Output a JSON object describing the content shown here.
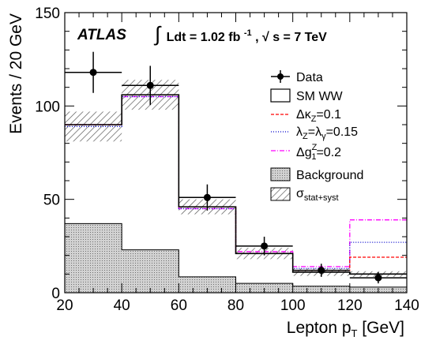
{
  "chart_data": {
    "type": "histogram",
    "x_edges": [
      20,
      40,
      60,
      80,
      100,
      120,
      140
    ],
    "xlim": [
      20,
      140
    ],
    "ylim": [
      0,
      150
    ],
    "x_ticks": [
      20,
      40,
      60,
      80,
      100,
      120,
      140
    ],
    "y_ticks": [
      0,
      50,
      100,
      150
    ],
    "xlabel": {
      "main": "Lepton p",
      "sub": "T",
      "unit": " [GeV]"
    },
    "ylabel": "Events / 20 GeV",
    "atlas_label": "ATLAS",
    "luminosity": {
      "integral": "∫",
      "text": "Ldt = 1.02 fb",
      "sup": "-1",
      "sep": ",",
      "sqrt": "√",
      "energy": "s = 7 TeV"
    },
    "data": {
      "name": "Data",
      "x": [
        30,
        50,
        70,
        90,
        110,
        130
      ],
      "y": [
        118,
        111,
        51,
        25,
        12,
        8
      ],
      "yerr": [
        11,
        10.5,
        7,
        5,
        3.5,
        3
      ]
    },
    "sm_ww": {
      "name": "SM WW",
      "values": [
        90,
        106,
        46,
        21,
        11,
        10
      ]
    },
    "sm_uncertainty": {
      "low": [
        81,
        98,
        42,
        18,
        9,
        8.5
      ],
      "high": [
        97,
        114,
        50,
        24,
        13,
        11.5
      ]
    },
    "background": {
      "name": "Background",
      "values": [
        37,
        23,
        8.5,
        5,
        3.5,
        3
      ]
    },
    "kappa_z": {
      "values": [
        90,
        106,
        46,
        21,
        12,
        19
      ]
    },
    "lambda": {
      "values": [
        89,
        105,
        45,
        21,
        13,
        27
      ]
    },
    "g1z": {
      "values": [
        90,
        105,
        45,
        22,
        14,
        39
      ]
    },
    "legend": {
      "position": "top-right",
      "data": "Data",
      "sm_ww": "SM WW",
      "kappa": {
        "pre": "Δκ",
        "sub": "Z",
        "post": "=0.1"
      },
      "lambda": {
        "p1": "λ",
        "s1": "Z",
        "p2": "=λ",
        "s2": "γ",
        "p3": "=0.15"
      },
      "g1": {
        "pre": "Δg",
        "sup": "Z",
        "sub": "1",
        "post": "=0.2"
      },
      "background": "Background",
      "sigma": {
        "pre": "σ",
        "sub": "stat+syst"
      }
    },
    "colors": {
      "sm_ww": "#000000",
      "kappa_z": "#ff0000",
      "lambda": "#0000cc",
      "g1z": "#ff00ff",
      "background_fill": "#c8c8c8"
    }
  }
}
